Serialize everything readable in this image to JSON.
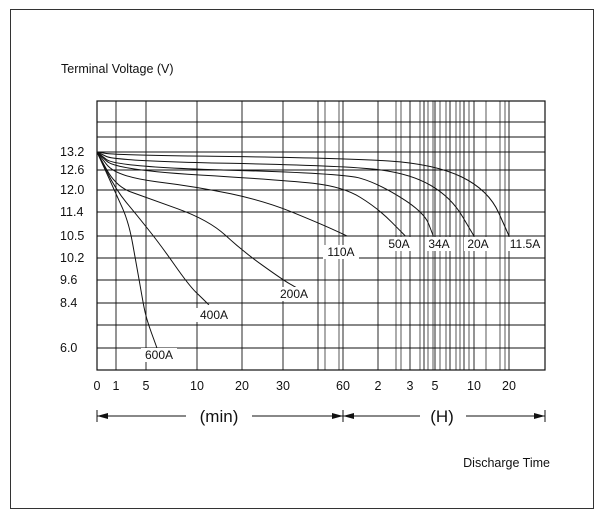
{
  "chart_data": {
    "type": "line",
    "ylabel": "Terminal Voltage (V)",
    "xlabel": "Discharge Time",
    "y_tick_labels": [
      "13.2",
      "12.6",
      "12.0",
      "11.4",
      "10.5",
      "10.2",
      "9.6",
      "8.4",
      "6.0"
    ],
    "x_tick_labels_min": [
      "0",
      "1",
      "5",
      "10",
      "20",
      "30",
      "60"
    ],
    "x_tick_labels_h": [
      "2",
      "3",
      "5",
      "10",
      "20"
    ],
    "unit_min": "(min)",
    "unit_h": "(H)",
    "grid": true,
    "x_scale": "log",
    "series": [
      {
        "name": "600A",
        "points": [
          [
            0,
            13.2
          ],
          [
            1,
            11.9
          ],
          [
            2,
            11.0
          ],
          [
            3,
            10.0
          ],
          [
            4,
            8.8
          ],
          [
            5,
            7.6
          ],
          [
            5.8,
            6.0
          ]
        ]
      },
      {
        "name": "400A",
        "points": [
          [
            0,
            13.2
          ],
          [
            1,
            12.0
          ],
          [
            3,
            11.3
          ],
          [
            6,
            10.4
          ],
          [
            9,
            9.3
          ],
          [
            11,
            8.6
          ],
          [
            12,
            8.3
          ]
        ]
      },
      {
        "name": "200A",
        "points": [
          [
            0,
            13.2
          ],
          [
            1,
            12.1
          ],
          [
            5,
            11.8
          ],
          [
            12,
            11.1
          ],
          [
            20,
            10.3
          ],
          [
            30,
            9.6
          ],
          [
            35,
            9.2
          ]
        ]
      },
      {
        "name": "110A",
        "points": [
          [
            0,
            13.2
          ],
          [
            1,
            12.4
          ],
          [
            10,
            12.1
          ],
          [
            25,
            11.7
          ],
          [
            45,
            11.0
          ],
          [
            65,
            10.5
          ]
        ]
      },
      {
        "name": "50A",
        "points": [
          [
            0,
            13.2
          ],
          [
            1,
            12.6
          ],
          [
            30,
            12.3
          ],
          [
            60,
            12.1
          ],
          [
            120,
            11.5
          ],
          [
            170,
            10.5
          ]
        ]
      },
      {
        "name": "34A",
        "points": [
          [
            0,
            13.2
          ],
          [
            1,
            12.7
          ],
          [
            60,
            12.5
          ],
          [
            120,
            12.2
          ],
          [
            240,
            11.4
          ],
          [
            290,
            10.5
          ]
        ]
      },
      {
        "name": "20A",
        "points": [
          [
            0,
            13.2
          ],
          [
            1,
            12.9
          ],
          [
            60,
            12.75
          ],
          [
            180,
            12.5
          ],
          [
            400,
            11.8
          ],
          [
            600,
            10.5
          ]
        ]
      },
      {
        "name": "11.5A",
        "points": [
          [
            0,
            13.2
          ],
          [
            1,
            13.1
          ],
          [
            60,
            13.0
          ],
          [
            300,
            12.8
          ],
          [
            800,
            12.0
          ],
          [
            1200,
            10.5
          ]
        ]
      }
    ]
  }
}
